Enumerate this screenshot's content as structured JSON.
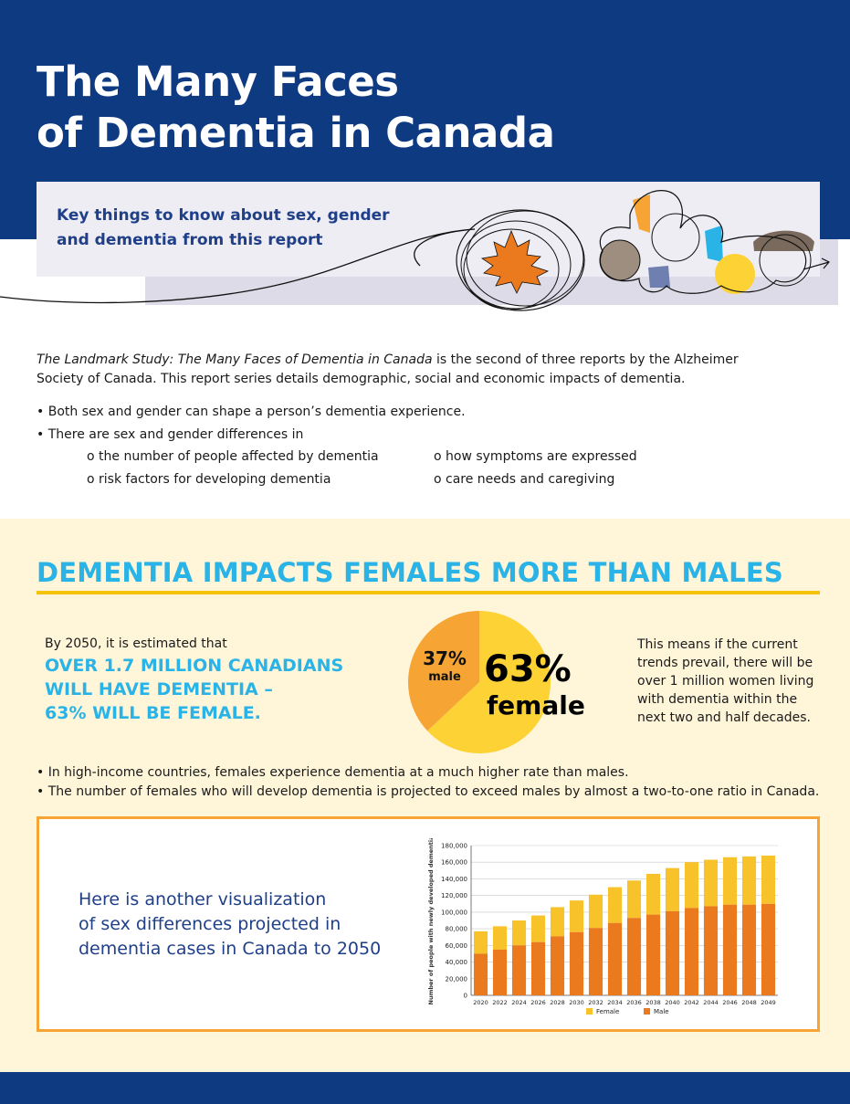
{
  "hero": {
    "title_line1": "The Many Faces",
    "title_line2": "of Dementia in Canada",
    "subtitle_line1": "Key things to know about sex, gender",
    "subtitle_line2": "and dementia from this report"
  },
  "intro": {
    "study_title": "The Landmark Study: The Many Faces of Dementia in Canada",
    "text_after_title": " is the second of three reports by the Alzheimer",
    "line2": "Society of Canada. This report series details demographic, social and economic impacts of dementia.",
    "bullet1": "• Both sex and gender can shape a person’s dementia experience.",
    "bullet2": "• There are sex and gender differences in",
    "sub1": "o the number of people affected by dementia",
    "sub2": "o risk factors for developing dementia",
    "sub3": "o how symptoms are expressed",
    "sub4": "o care needs and caregiving"
  },
  "impact": {
    "heading": "DEMENTIA IMPACTS FEMALES MORE THAN MALES",
    "by2050": "By 2050, it is estimated that",
    "big_line1": "OVER 1.7 MILLION CANADIANS",
    "big_line2": "WILL HAVE DEMENTIA –",
    "big_line3": "63% WILL BE FEMALE.",
    "male_pct": "37%",
    "male_label": "male",
    "female_pct": "63%",
    "female_label": "female",
    "female_share": 0.63,
    "means_l1": "This means if the current",
    "means_l2": "trends prevail, there will be",
    "means_l3": "over 1 million women living",
    "means_l4": "with dementia within the",
    "means_l5": "next two and half decades.",
    "fact1": "• In high-income countries, females experience dementia at a much higher rate than males.",
    "fact2": "• The number of females who will develop dementia is projected to exceed males by almost a two-to-one ratio in Canada."
  },
  "viz": {
    "line1": "Here is another visualization",
    "line2": "of sex differences projected in",
    "line3": "dementia cases in Canada to 2050"
  },
  "colors": {
    "navy": "#0e3a82",
    "female": "#f8c22a",
    "male": "#ea7a1d",
    "pie_male": "#f6a535",
    "pie_female": "#fdd234"
  },
  "chart_data": {
    "type": "bar",
    "ylabel": "Number of people with newly developed dementia",
    "xlabel": "",
    "ylim": [
      0,
      180000
    ],
    "yticks": [
      "0",
      "20,000",
      "40,000",
      "60,000",
      "80,000",
      "100,000",
      "120,000",
      "140,000",
      "160,000",
      "180,000"
    ],
    "categories": [
      "2020",
      "2022",
      "2024",
      "2026",
      "2028",
      "2030",
      "2032",
      "2034",
      "2036",
      "2038",
      "2040",
      "2042",
      "2044",
      "2046",
      "2048",
      "2049"
    ],
    "series": [
      {
        "name": "Female",
        "values": [
          27000,
          28000,
          30000,
          32000,
          35000,
          38000,
          40000,
          43000,
          45000,
          49000,
          52000,
          55000,
          56000,
          57000,
          58000,
          58000
        ]
      },
      {
        "name": "Male",
        "values": [
          50000,
          55000,
          60000,
          64000,
          71000,
          76000,
          81000,
          87000,
          93000,
          97000,
          101000,
          105000,
          107000,
          109000,
          109000,
          110000
        ]
      }
    ],
    "stacked": true,
    "legend": [
      "Female",
      "Male"
    ],
    "legend_position": "bottom"
  }
}
